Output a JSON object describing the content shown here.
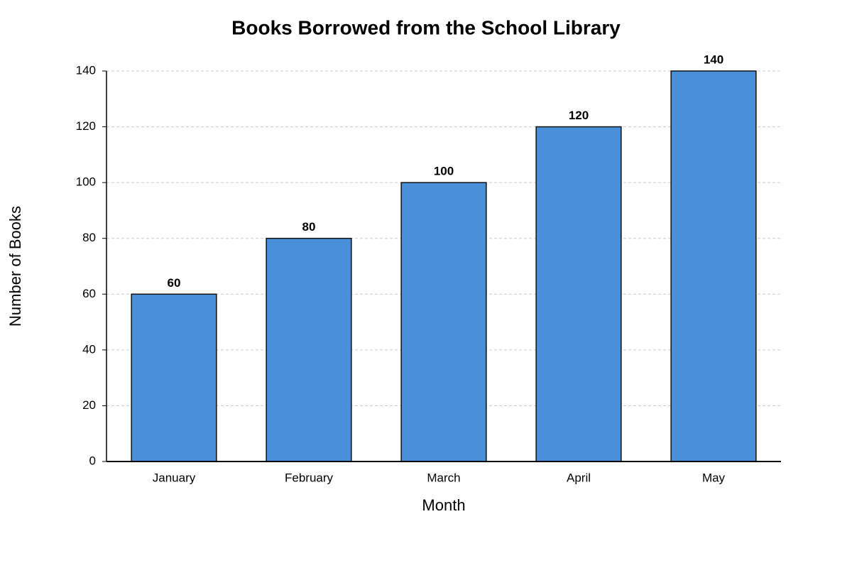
{
  "chart_data": {
    "type": "bar",
    "title": "Books Borrowed from the School Library",
    "x_label": "Month",
    "y_label": "Number of Books",
    "categories": [
      "January",
      "February",
      "March",
      "April",
      "May"
    ],
    "values": [
      60,
      80,
      100,
      120,
      140
    ],
    "color": "#4a90d9",
    "ylim": [
      0,
      140
    ],
    "yticks": [
      0,
      20,
      40,
      60,
      80,
      100,
      120,
      140
    ],
    "grid": true
  }
}
